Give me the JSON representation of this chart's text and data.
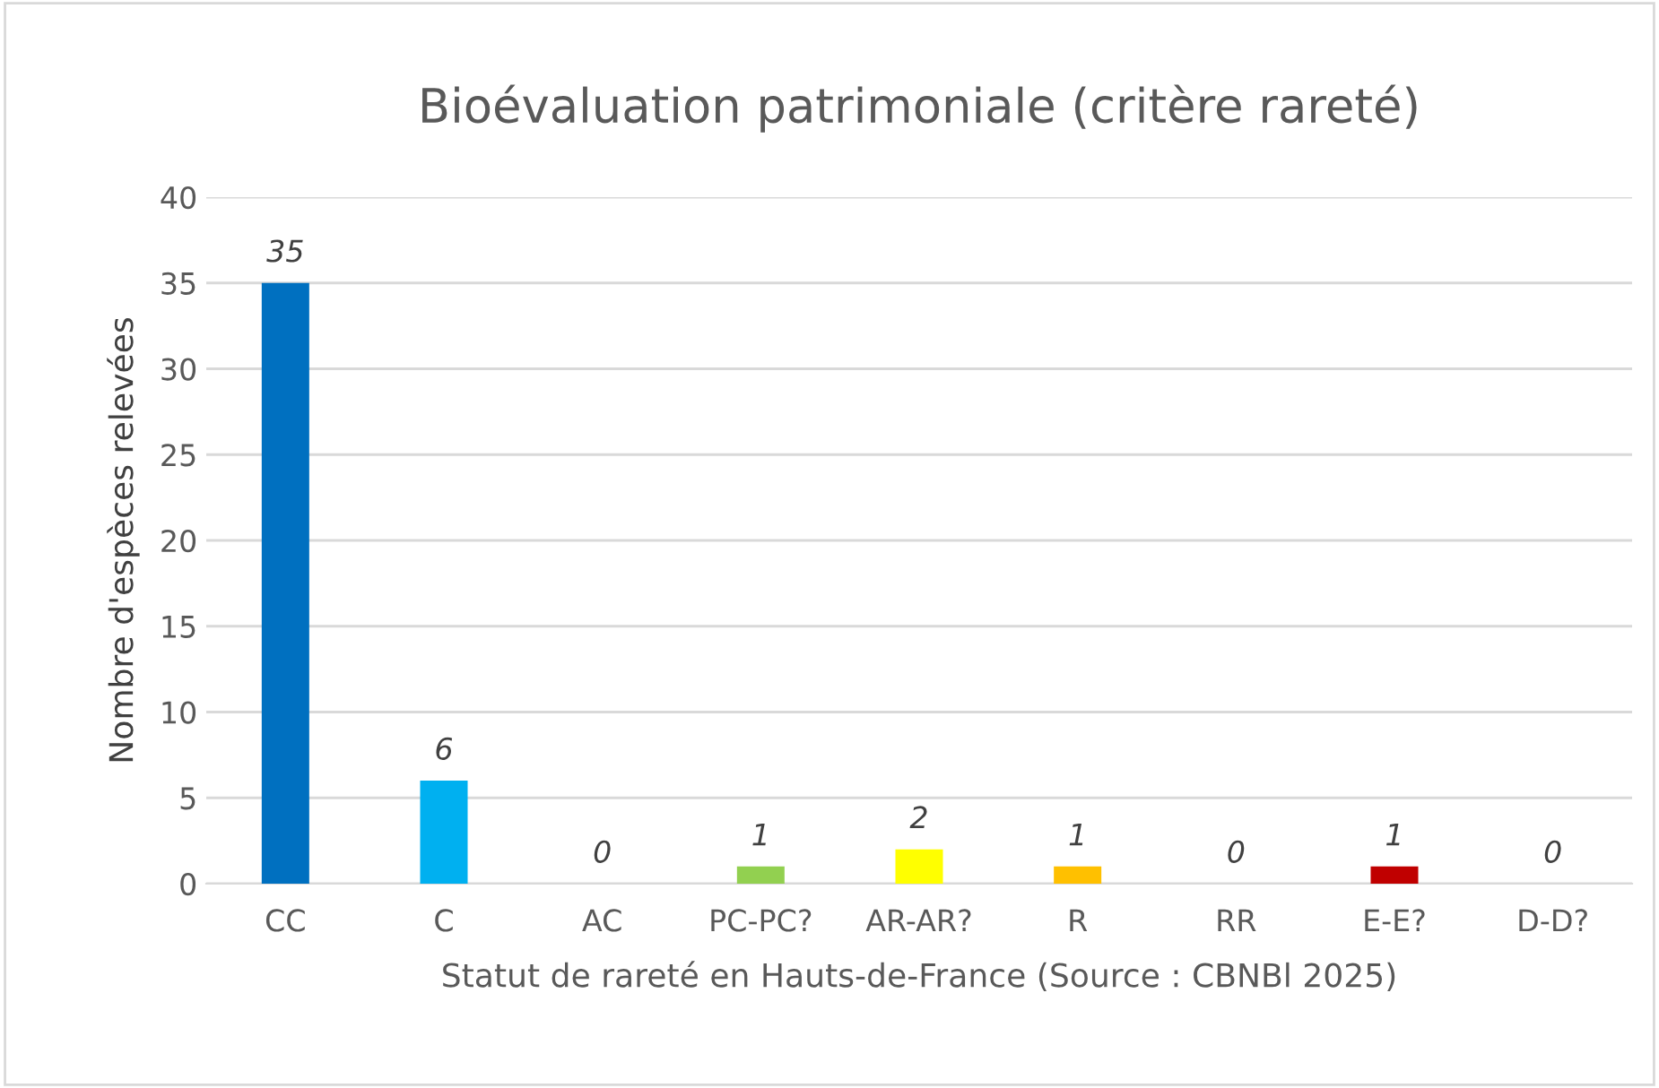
{
  "chart_data": {
    "type": "bar",
    "title": "Bioévaluation patrimoniale (critère rareté)",
    "xlabel": "Statut de rareté en Hauts-de-France (Source : CBNBl 2025)",
    "ylabel": "Nombre d'espèces relevées",
    "categories": [
      "CC",
      "C",
      "AC",
      "PC-PC?",
      "AR-AR?",
      "R",
      "RR",
      "E-E?",
      "D-D?"
    ],
    "values": [
      35,
      6,
      0,
      1,
      2,
      1,
      0,
      1,
      0
    ],
    "colors": [
      "#0070c0",
      "#00b0f0",
      "#00b050",
      "#92d050",
      "#ffff00",
      "#ffc000",
      "#ff6600",
      "#c00000",
      "#7f7f7f"
    ],
    "ylim": [
      0,
      40
    ],
    "yticks": [
      0,
      5,
      10,
      15,
      20,
      25,
      30,
      35,
      40
    ],
    "grid": "y",
    "data_labels": true
  }
}
